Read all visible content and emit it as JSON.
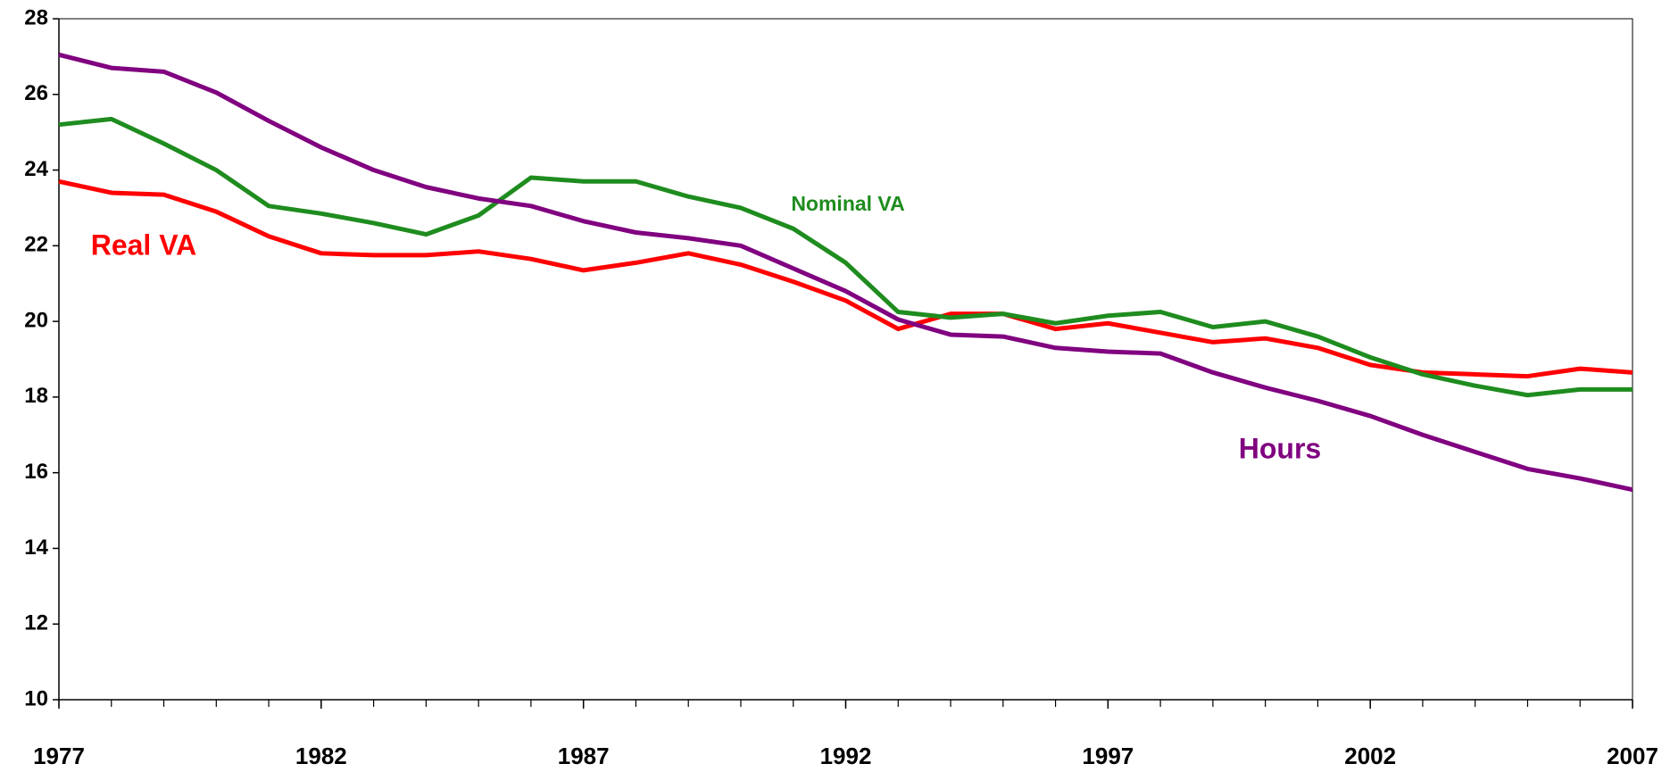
{
  "chart_data": {
    "type": "line",
    "x": [
      1977,
      1978,
      1979,
      1980,
      1981,
      1982,
      1983,
      1984,
      1985,
      1986,
      1987,
      1988,
      1989,
      1990,
      1991,
      1992,
      1993,
      1994,
      1995,
      1996,
      1997,
      1998,
      1999,
      2000,
      2001,
      2002,
      2003,
      2004,
      2005,
      2006,
      2007
    ],
    "xlim": [
      1977,
      2007
    ],
    "xticks": [
      1977,
      1982,
      1987,
      1992,
      1997,
      2002,
      2007
    ],
    "ylim": [
      10,
      28
    ],
    "yticks": [
      10,
      12,
      14,
      16,
      18,
      20,
      22,
      24,
      26,
      28
    ],
    "grid": false,
    "series": [
      {
        "name": "Real VA",
        "color": "#ff0000",
        "values": [
          23.7,
          23.4,
          23.35,
          22.9,
          22.25,
          21.8,
          21.75,
          21.75,
          21.85,
          21.65,
          21.35,
          21.55,
          21.8,
          21.5,
          21.05,
          20.55,
          19.8,
          20.2,
          20.2,
          19.8,
          19.95,
          19.7,
          19.45,
          19.55,
          19.3,
          18.85,
          18.65,
          18.6,
          18.55,
          18.75,
          18.65
        ]
      },
      {
        "name": "Nominal VA",
        "color": "#1e8c1e",
        "values": [
          25.2,
          25.35,
          24.7,
          24.0,
          23.05,
          22.85,
          22.6,
          22.3,
          22.8,
          23.8,
          23.7,
          23.7,
          23.3,
          23.0,
          22.45,
          21.55,
          20.25,
          20.1,
          20.2,
          19.95,
          20.15,
          20.25,
          19.85,
          20.0,
          19.6,
          19.05,
          18.6,
          18.3,
          18.05,
          18.2,
          18.2
        ]
      },
      {
        "name": "Hours",
        "color": "#800080",
        "values": [
          27.05,
          26.7,
          26.6,
          26.05,
          25.3,
          24.6,
          24.0,
          23.55,
          23.25,
          23.05,
          22.65,
          22.35,
          22.2,
          22.0,
          21.4,
          20.8,
          20.05,
          19.65,
          19.6,
          19.3,
          19.2,
          19.15,
          18.65,
          18.25,
          17.9,
          17.5,
          17.0,
          16.55,
          16.1,
          15.85,
          15.55
        ]
      }
    ]
  }
}
